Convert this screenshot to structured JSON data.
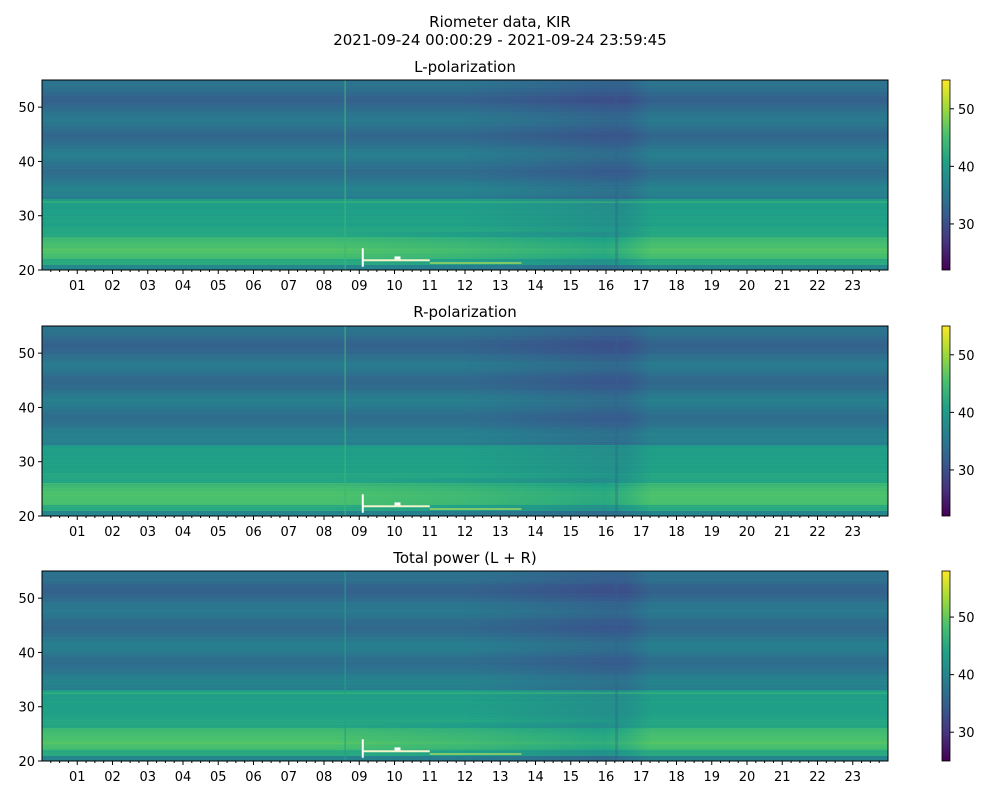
{
  "figure": {
    "title_line1": "Riometer data, KIR",
    "title_line2": "2021-09-24 00:00:29 - 2021-09-24 23:59:45"
  },
  "colormap": [
    "#440154",
    "#46327e",
    "#365c8d",
    "#277f8e",
    "#1fa187",
    "#4ac16d",
    "#a0da39",
    "#fde725"
  ],
  "chart_data": [
    {
      "type": "heatmap",
      "title": "L-polarization",
      "x_tick_labels": [
        "01",
        "02",
        "03",
        "04",
        "05",
        "06",
        "07",
        "08",
        "09",
        "10",
        "11",
        "12",
        "13",
        "14",
        "15",
        "16",
        "17",
        "18",
        "19",
        "20",
        "21",
        "22",
        "23"
      ],
      "x_range_hours": [
        0,
        24
      ],
      "y_range": [
        20,
        55
      ],
      "y_ticks": [
        20,
        30,
        40,
        50
      ],
      "colorbar": {
        "range": [
          22,
          55
        ],
        "ticks": [
          30,
          40,
          50
        ]
      },
      "features": {
        "vertical_line_hour": 8.6,
        "event_hours": [
          9.1,
          11.0
        ],
        "dark_column_hour": 16.3,
        "bright_line_y": 32.5
      }
    },
    {
      "type": "heatmap",
      "title": "R-polarization",
      "x_tick_labels": [
        "01",
        "02",
        "03",
        "04",
        "05",
        "06",
        "07",
        "08",
        "09",
        "10",
        "11",
        "12",
        "13",
        "14",
        "15",
        "16",
        "17",
        "18",
        "19",
        "20",
        "21",
        "22",
        "23"
      ],
      "x_range_hours": [
        0,
        24
      ],
      "y_range": [
        20,
        55
      ],
      "y_ticks": [
        20,
        30,
        40,
        50
      ],
      "colorbar": {
        "range": [
          22,
          55
        ],
        "ticks": [
          30,
          40,
          50
        ]
      },
      "features": {
        "vertical_line_hour": 8.6,
        "event_hours": [
          9.1,
          11.0
        ],
        "dark_column_hour": 16.3,
        "bright_line_y": 33.0
      }
    },
    {
      "type": "heatmap",
      "title": "Total power (L + R)",
      "x_tick_labels": [
        "01",
        "02",
        "03",
        "04",
        "05",
        "06",
        "07",
        "08",
        "09",
        "10",
        "11",
        "12",
        "13",
        "14",
        "15",
        "16",
        "17",
        "18",
        "19",
        "20",
        "21",
        "22",
        "23"
      ],
      "x_range_hours": [
        0,
        24
      ],
      "y_range": [
        20,
        55
      ],
      "y_ticks": [
        20,
        30,
        40,
        50
      ],
      "colorbar": {
        "range": [
          25,
          58
        ],
        "ticks": [
          30,
          40,
          50
        ]
      },
      "features": {
        "vertical_line_hour": 8.6,
        "event_hours": [
          9.1,
          11.0
        ],
        "dark_column_hour": 16.3,
        "bright_line_y": 32.5
      }
    }
  ]
}
